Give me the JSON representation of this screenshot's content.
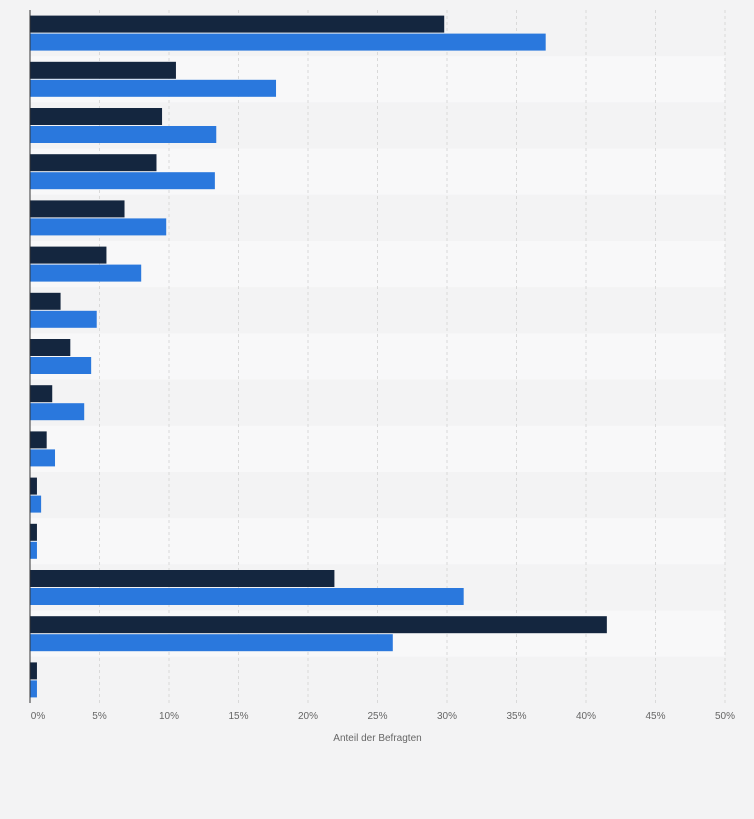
{
  "chart_data": {
    "type": "bar",
    "orientation": "horizontal",
    "title": "",
    "xlabel": "Anteil der Befragten",
    "ylabel": "",
    "xlim": [
      0,
      50
    ],
    "x_ticks": [
      "0%",
      "5%",
      "10%",
      "15%",
      "20%",
      "25%",
      "30%",
      "35%",
      "40%",
      "45%",
      "50%"
    ],
    "x_tick_values": [
      0,
      5,
      10,
      15,
      20,
      25,
      30,
      35,
      40,
      45,
      50
    ],
    "grid": true,
    "legend": "none",
    "categories": [
      "",
      "",
      "",
      "",
      "",
      "",
      "",
      "",
      "",
      "",
      "",
      "",
      "",
      "",
      ""
    ],
    "series": [
      {
        "color": "#14263f",
        "values": [
          29.8,
          10.5,
          9.5,
          9.1,
          6.8,
          5.5,
          2.2,
          2.9,
          1.6,
          1.2,
          0.5,
          0.5,
          21.9,
          41.5,
          0.5
        ]
      },
      {
        "color": "#2a78dd",
        "values": [
          37.1,
          17.7,
          13.4,
          13.3,
          9.8,
          8.0,
          4.8,
          4.4,
          3.9,
          1.8,
          0.8,
          0.5,
          31.2,
          26.1,
          0.5
        ]
      }
    ]
  }
}
